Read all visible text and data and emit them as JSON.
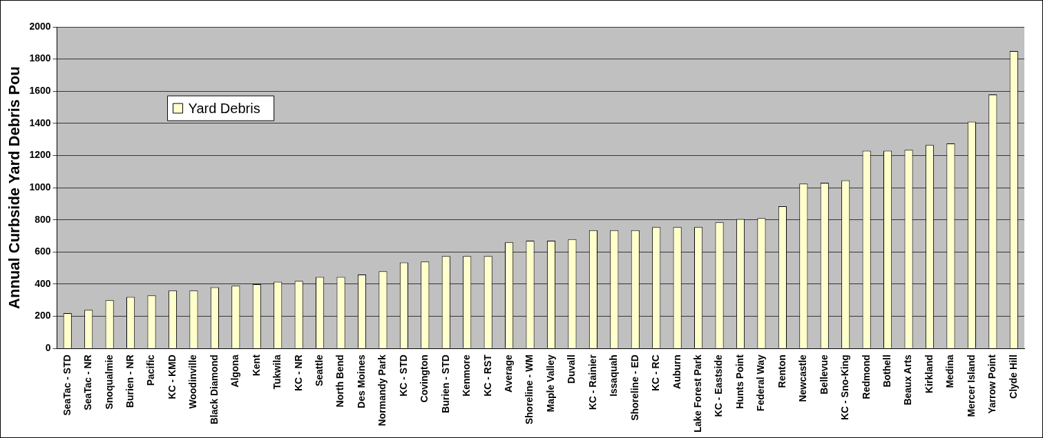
{
  "chart_data": {
    "type": "bar",
    "ylabel": "Annual Curbside Yard Debris Pou",
    "categories": [
      "SeaTac - STD",
      "SeaTac - NR",
      "Snoqualmie",
      "Burien - NR",
      "Pacific",
      "KC - KMD",
      "Woodinville",
      "Black Diamond",
      "Algona",
      "Kent",
      "Tukwila",
      "KC - NR",
      "Seattle",
      "North Bend",
      "Des Moines",
      "Normandy Park",
      "KC - STD",
      "Covington",
      "Burien - STD",
      "Kenmore",
      "KC - RST",
      "Average",
      "Shoreline - WM",
      "Maple Valley",
      "Duvall",
      "KC - Rainier",
      "Issaquah",
      "Shoreline - ED",
      "KC - RC",
      "Auburn",
      "Lake Forest Park",
      "KC - Eastside",
      "Hunts Point",
      "Federal Way",
      "Renton",
      "Newcastle",
      "Bellevue",
      "KC - Sno-King",
      "Redmond",
      "Bothell",
      "Beaux Arts",
      "Kirkland",
      "Medina",
      "Mercer Island",
      "Yarrow Point",
      "Clyde Hill"
    ],
    "series": [
      {
        "name": "Yard Debris",
        "color": "#ffffcc",
        "values": [
          220,
          240,
          300,
          320,
          330,
          360,
          360,
          380,
          390,
          400,
          415,
          420,
          445,
          445,
          460,
          480,
          535,
          540,
          575,
          575,
          575,
          660,
          670,
          670,
          680,
          735,
          735,
          735,
          755,
          755,
          755,
          785,
          805,
          810,
          885,
          1025,
          1030,
          1045,
          1230,
          1230,
          1235,
          1265,
          1275,
          1410,
          1580,
          1850
        ]
      }
    ],
    "ylim": [
      0,
      2000
    ],
    "yticks": [
      0,
      200,
      400,
      600,
      800,
      1000,
      1200,
      1400,
      1600,
      1800,
      2000
    ],
    "grid": "y",
    "legend": "top left"
  }
}
